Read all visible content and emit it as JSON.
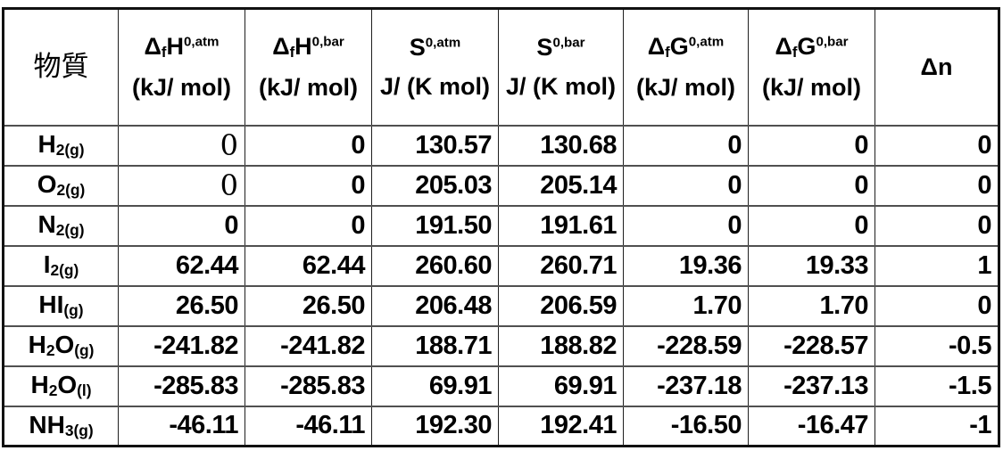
{
  "colors": {
    "ink": "#000000",
    "grid_horizontal": "#505050",
    "grid_vertical": "#1f1f1f",
    "frame": "#111111",
    "background": "#ffffff"
  },
  "table": {
    "substance_header": "物質",
    "columns": [
      {
        "id": "dfH-atm",
        "line1": [
          {
            "t": "Δ"
          },
          {
            "t": "f",
            "style": "sub"
          },
          {
            "t": "H"
          },
          {
            "t": "0,atm",
            "style": "sup"
          }
        ],
        "line2": "(kJ/ mol)"
      },
      {
        "id": "dfH-bar",
        "line1": [
          {
            "t": "Δ"
          },
          {
            "t": "f",
            "style": "sub"
          },
          {
            "t": "H"
          },
          {
            "t": "0,bar",
            "style": "sup"
          }
        ],
        "line2": "(kJ/ mol)"
      },
      {
        "id": "S-atm",
        "line1": [
          {
            "t": "S"
          },
          {
            "t": "0,atm",
            "style": "sup"
          }
        ],
        "line2": "J/ (K mol)"
      },
      {
        "id": "S-bar",
        "line1": [
          {
            "t": "S"
          },
          {
            "t": "0,bar",
            "style": "sup"
          }
        ],
        "line2": "J/ (K mol)"
      },
      {
        "id": "dfG-atm",
        "line1": [
          {
            "t": "Δ"
          },
          {
            "t": "f",
            "style": "sub"
          },
          {
            "t": "G"
          },
          {
            "t": "0,atm",
            "style": "sup"
          }
        ],
        "line2": "(kJ/ mol)"
      },
      {
        "id": "dfG-bar",
        "line1": [
          {
            "t": "Δ"
          },
          {
            "t": "f",
            "style": "sub"
          },
          {
            "t": "G"
          },
          {
            "t": "0,bar",
            "style": "sup"
          }
        ],
        "line2": "(kJ/ mol)"
      },
      {
        "id": "dn",
        "line1": [
          {
            "t": "Δn"
          }
        ],
        "line2": ""
      }
    ],
    "rows": [
      {
        "substance": [
          {
            "t": "H"
          },
          {
            "t": "2(g)",
            "style": "sub"
          }
        ],
        "values": [
          "0",
          "0",
          "130.57",
          "130.68",
          "0",
          "0",
          "0"
        ],
        "value_styles": [
          "serif",
          "",
          "",
          "",
          "",
          "",
          ""
        ]
      },
      {
        "substance": [
          {
            "t": "O"
          },
          {
            "t": "2(g)",
            "style": "sub"
          }
        ],
        "values": [
          "0",
          "0",
          "205.03",
          "205.14",
          "0",
          "0",
          "0"
        ],
        "value_styles": [
          "serif",
          "",
          "",
          "",
          "",
          "",
          ""
        ]
      },
      {
        "substance": [
          {
            "t": "N"
          },
          {
            "t": "2(g)",
            "style": "sub"
          }
        ],
        "values": [
          "0",
          "0",
          "191.50",
          "191.61",
          "0",
          "0",
          "0"
        ],
        "value_styles": [
          "",
          "",
          "",
          "",
          "",
          "",
          ""
        ]
      },
      {
        "substance": [
          {
            "t": "I"
          },
          {
            "t": "2(g)",
            "style": "sub"
          }
        ],
        "values": [
          "62.44",
          "62.44",
          "260.60",
          "260.71",
          "19.36",
          "19.33",
          "1"
        ],
        "value_styles": [
          "",
          "",
          "",
          "",
          "",
          "",
          ""
        ]
      },
      {
        "substance": [
          {
            "t": "HI"
          },
          {
            "t": "(g)",
            "style": "sub"
          }
        ],
        "values": [
          "26.50",
          "26.50",
          "206.48",
          "206.59",
          "1.70",
          "1.70",
          "0"
        ],
        "value_styles": [
          "",
          "",
          "",
          "",
          "",
          "",
          ""
        ]
      },
      {
        "substance": [
          {
            "t": "H"
          },
          {
            "t": "2",
            "style": "sub"
          },
          {
            "t": "O"
          },
          {
            "t": "(g)",
            "style": "sub"
          }
        ],
        "values": [
          "-241.82",
          "-241.82",
          "188.71",
          "188.82",
          "-228.59",
          "-228.57",
          "-0.5"
        ],
        "value_styles": [
          "",
          "",
          "",
          "",
          "",
          "",
          ""
        ]
      },
      {
        "substance": [
          {
            "t": "H"
          },
          {
            "t": "2",
            "style": "sub"
          },
          {
            "t": "O"
          },
          {
            "t": "(l)",
            "style": "sub"
          }
        ],
        "values": [
          "-285.83",
          "-285.83",
          "69.91",
          "69.91",
          "-237.18",
          "-237.13",
          "-1.5"
        ],
        "value_styles": [
          "",
          "",
          "",
          "",
          "",
          "",
          ""
        ]
      },
      {
        "substance": [
          {
            "t": "NH"
          },
          {
            "t": "3(g)",
            "style": "sub"
          }
        ],
        "values": [
          "-46.11",
          "-46.11",
          "192.30",
          "192.41",
          "-16.50",
          "-16.47",
          "-1"
        ],
        "value_styles": [
          "",
          "",
          "",
          "",
          "",
          "",
          ""
        ]
      }
    ]
  }
}
